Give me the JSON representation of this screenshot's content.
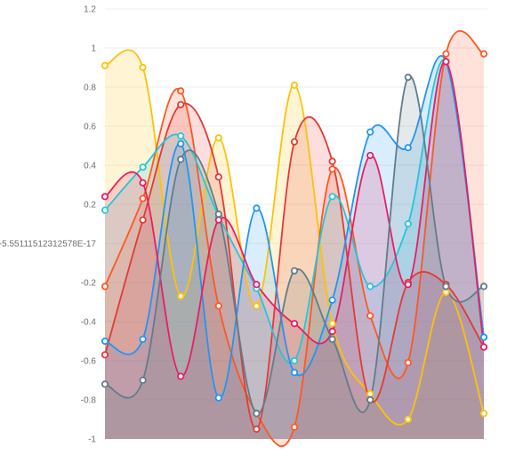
{
  "chart_data": {
    "type": "area",
    "title": "",
    "xlabel": "",
    "ylabel": "",
    "ylim": [
      -1,
      1.2
    ],
    "y_ticks": [
      -1,
      -0.8,
      -0.6,
      -0.4,
      -0.2,
      -5.55111512312578e-17,
      0.2,
      0.4,
      0.6,
      0.8,
      1,
      1.2
    ],
    "y_tick_labels": [
      "-1",
      "-0.8",
      "-0.6",
      "-0.4",
      "-0.2",
      "-5.55111512312578E-17",
      "0.2",
      "0.4",
      "0.6",
      "0.8",
      "1",
      "1.2"
    ],
    "grid": true,
    "legend": "none",
    "x": [
      0,
      1,
      2,
      3,
      4,
      5,
      6,
      7,
      8,
      9,
      10
    ],
    "series": [
      {
        "color": "#ffc107",
        "values": [
          0.91,
          0.9,
          -0.27,
          0.54,
          -0.32,
          0.81,
          -0.41,
          -0.77,
          -0.9,
          -0.25,
          -0.87
        ]
      },
      {
        "color": "#ff5722",
        "values": [
          -0.22,
          0.23,
          0.78,
          -0.32,
          -0.87,
          -0.94,
          0.38,
          -0.37,
          -0.61,
          0.97,
          0.97
        ]
      },
      {
        "color": "#e53935",
        "values": [
          -0.57,
          0.12,
          0.71,
          0.34,
          -0.95,
          0.52,
          0.42,
          -0.8,
          -0.2,
          -0.21,
          -0.53
        ]
      },
      {
        "color": "#26c6da",
        "values": [
          0.17,
          0.39,
          0.55,
          0.14,
          -0.23,
          -0.6,
          0.24,
          -0.22,
          0.1,
          0.93,
          -0.48
        ]
      },
      {
        "color": "#2196f3",
        "values": [
          -0.5,
          -0.49,
          0.51,
          -0.79,
          0.18,
          -0.66,
          -0.29,
          0.57,
          0.49,
          0.93,
          -0.48
        ]
      },
      {
        "color": "#e91e63",
        "values": [
          0.24,
          0.31,
          -0.68,
          0.12,
          -0.21,
          -0.41,
          -0.45,
          0.45,
          -0.21,
          0.93,
          -0.53
        ]
      },
      {
        "color": "#607d8b",
        "values": [
          -0.72,
          -0.7,
          0.43,
          0.15,
          -0.87,
          -0.14,
          -0.49,
          -0.8,
          0.85,
          -0.22,
          -0.22
        ]
      }
    ]
  }
}
